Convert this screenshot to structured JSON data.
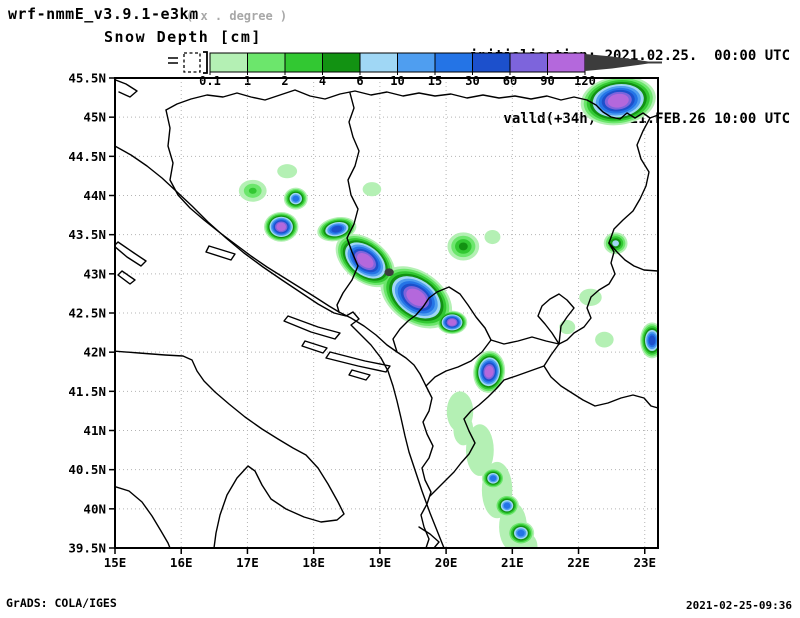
{
  "header": {
    "model_title": "wrf-nmmE_v3.9.1-e3km",
    "model_note": "( x . degree )",
    "field_title": "Snow Depth [cm]",
    "init_line": "initialisation: 2021.02.25.  00:00 UTC",
    "valid_line": "valld(+34h): 2021.FEB.26 10:00 UTC"
  },
  "footer": {
    "left": "GrADS: COLA/IGES",
    "right": "2021-02-25-09:36"
  },
  "colorbar": {
    "tick_labels": [
      "0.1",
      "1",
      "2",
      "4",
      "6",
      "10",
      "15",
      "30",
      "60",
      "90",
      "120"
    ],
    "colors": [
      "#b4f0b4",
      "#6ce66c",
      "#32c832",
      "#129212",
      "#a0d7f5",
      "#4f9ef0",
      "#2474e6",
      "#1c50cc",
      "#7d64dc",
      "#b468dc"
    ],
    "overflow_color": "#3c3c3c",
    "underflow_box": "dashed-outline-white"
  },
  "map": {
    "lat_labels": [
      "45.5N",
      "45N",
      "44.5N",
      "44N",
      "43.5N",
      "43N",
      "42.5N",
      "42N",
      "41.5N",
      "41N",
      "40.5N",
      "40N",
      "39.5N"
    ],
    "lon_labels": [
      "15E",
      "16E",
      "17E",
      "18E",
      "19E",
      "20E",
      "21E",
      "22E",
      "23E"
    ],
    "lat_range": [
      39.5,
      45.5
    ],
    "lon_range": [
      15.0,
      23.2
    ],
    "grid": "dotted, 0.5 deg lat x 1 deg lon"
  },
  "chart_data": {
    "type": "map-contour-fill",
    "title": "Snow Depth [cm]",
    "units": "cm",
    "levels": [
      0.1,
      1,
      2,
      4,
      6,
      10,
      15,
      30,
      60,
      90,
      120
    ],
    "bins": [
      "0.1-1",
      "1-2",
      "2-4",
      "4-6",
      "6-10",
      "10-15",
      "15-30",
      "30-60",
      "60-90",
      "90-120",
      ">120"
    ],
    "region": "Balkans / Adriatic (15E-23.2E, 39.5N-45.5N)",
    "snow_patches": [
      {
        "lon": 22.6,
        "lat": 45.21,
        "rxd": 0.57,
        "ryd": 0.31,
        "rot": -8,
        "level": 9
      },
      {
        "lon": 22.56,
        "lat": 43.39,
        "rxd": 0.18,
        "ryd": 0.14,
        "rot": 0,
        "level": 4
      },
      {
        "lon": 17.6,
        "lat": 44.31,
        "rxd": 0.15,
        "ryd": 0.09,
        "rot": 0,
        "level": 0
      },
      {
        "lon": 17.08,
        "lat": 44.06,
        "rxd": 0.21,
        "ryd": 0.14,
        "rot": 0,
        "level": 2
      },
      {
        "lon": 17.73,
        "lat": 43.96,
        "rxd": 0.18,
        "ryd": 0.14,
        "rot": 0,
        "level": 6
      },
      {
        "lon": 18.88,
        "lat": 44.08,
        "rxd": 0.14,
        "ryd": 0.09,
        "rot": 0,
        "level": 0
      },
      {
        "lon": 17.51,
        "lat": 43.6,
        "rxd": 0.26,
        "ryd": 0.19,
        "rot": 0,
        "level": 9
      },
      {
        "lon": 18.35,
        "lat": 43.57,
        "rxd": 0.3,
        "ryd": 0.15,
        "rot": -12,
        "level": 7
      },
      {
        "lon": 18.78,
        "lat": 43.17,
        "rxd": 0.51,
        "ryd": 0.27,
        "rot": 38,
        "level": 9
      },
      {
        "lon": 19.55,
        "lat": 42.7,
        "rxd": 0.6,
        "ryd": 0.33,
        "rot": 35,
        "level": 9
      },
      {
        "lon": 20.09,
        "lat": 42.38,
        "rxd": 0.23,
        "ryd": 0.15,
        "rot": 0,
        "level": 9
      },
      {
        "lon": 19.14,
        "lat": 43.02,
        "rxd": 0.07,
        "ryd": 0.05,
        "rot": 0,
        "level": 10,
        "solid": true
      },
      {
        "lon": 20.26,
        "lat": 43.35,
        "rxd": 0.24,
        "ryd": 0.18,
        "rot": 0,
        "level": 3
      },
      {
        "lon": 20.7,
        "lat": 43.47,
        "rxd": 0.12,
        "ryd": 0.09,
        "rot": 0,
        "level": 0
      },
      {
        "lon": 20.65,
        "lat": 41.75,
        "rxd": 0.24,
        "ryd": 0.27,
        "rot": 6,
        "level": 9
      },
      {
        "lon": 20.21,
        "lat": 41.24,
        "rxd": 0.2,
        "ryd": 0.26,
        "rot": 0,
        "level": 0
      },
      {
        "lon": 20.51,
        "lat": 40.75,
        "rxd": 0.21,
        "ryd": 0.33,
        "rot": 0,
        "level": 0
      },
      {
        "lon": 20.77,
        "lat": 40.24,
        "rxd": 0.23,
        "ryd": 0.36,
        "rot": 0,
        "level": 0
      },
      {
        "lon": 21.01,
        "lat": 39.77,
        "rxd": 0.21,
        "ryd": 0.31,
        "rot": 0,
        "level": 0
      },
      {
        "lon": 21.2,
        "lat": 39.52,
        "rxd": 0.18,
        "ryd": 0.18,
        "rot": 0,
        "level": 0
      },
      {
        "lon": 20.26,
        "lat": 41.01,
        "rxd": 0.15,
        "ryd": 0.2,
        "rot": 0,
        "level": 0
      },
      {
        "lon": 20.71,
        "lat": 40.39,
        "rxd": 0.17,
        "ryd": 0.13,
        "rot": 0,
        "level": 6
      },
      {
        "lon": 20.92,
        "lat": 40.04,
        "rxd": 0.18,
        "ryd": 0.14,
        "rot": 0,
        "level": 6
      },
      {
        "lon": 21.13,
        "lat": 39.69,
        "rxd": 0.2,
        "ryd": 0.15,
        "rot": 0,
        "level": 6
      },
      {
        "lon": 22.18,
        "lat": 42.7,
        "rxd": 0.17,
        "ryd": 0.11,
        "rot": 0,
        "level": 0
      },
      {
        "lon": 22.39,
        "lat": 42.16,
        "rxd": 0.14,
        "ryd": 0.1,
        "rot": 0,
        "level": 0
      },
      {
        "lon": 21.83,
        "lat": 42.32,
        "rxd": 0.12,
        "ryd": 0.09,
        "rot": 0,
        "level": 0
      },
      {
        "lon": 23.11,
        "lat": 42.15,
        "rxd": 0.18,
        "ryd": 0.23,
        "rot": 0,
        "level": 7
      }
    ]
  }
}
